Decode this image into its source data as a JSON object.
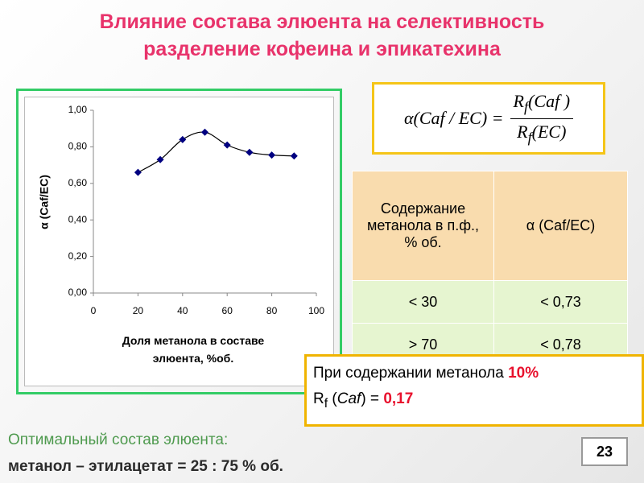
{
  "title": [
    "Влияние состава элюента на селективность",
    "разделение кофеина и эпикатехина"
  ],
  "chart_data": {
    "type": "line",
    "x": [
      20,
      30,
      40,
      50,
      60,
      70,
      80,
      90
    ],
    "series": [
      {
        "color": "#000080",
        "values": [
          0.66,
          0.73,
          0.84,
          0.88,
          0.81,
          0.77,
          0.755,
          0.75
        ]
      }
    ],
    "xlim": [
      0,
      100
    ],
    "xticks": [
      0,
      20,
      40,
      60,
      80,
      100
    ],
    "ylim": [
      0,
      1
    ],
    "yticks": [
      {
        "value": 0,
        "label": "0,00"
      },
      {
        "value": 0.2,
        "label": "0,20"
      },
      {
        "value": 0.4,
        "label": "0,40"
      },
      {
        "value": 0.6,
        "label": "0,60"
      },
      {
        "value": 0.8,
        "label": "0,80"
      },
      {
        "value": 1,
        "label": "1,00"
      }
    ],
    "y_label": "α (Caf/EC)",
    "x_label": "Доля метанола в составе элюента, %об.",
    "smooth": true
  },
  "formula": {
    "lhs": "α(Caf / EC) =",
    "numerator": {
      "symbol": "R",
      "subscript": "f",
      "arg": "(Caf )"
    },
    "denominator": {
      "symbol": "R",
      "subscript": "f",
      "arg": "(EC)"
    }
  },
  "table": {
    "header": [
      "Содержание метанола в п.ф., % об.",
      "α (Caf/EC)"
    ],
    "rows": [
      [
        "< 30",
        "< 0,73"
      ],
      [
        "> 70",
        "< 0,78"
      ]
    ]
  },
  "note": {
    "line1": "При содержании метанола ",
    "line1_value": "10%",
    "symbol": "R",
    "subscript": "f",
    "text_open": " (",
    "compound": "Caf",
    "text_close": ") = ",
    "value": "0,17"
  },
  "footer": [
    "Оптимальный состав элюента:",
    "метанол – этилацетат = 25 : 75 % об."
  ],
  "page_number": "23"
}
